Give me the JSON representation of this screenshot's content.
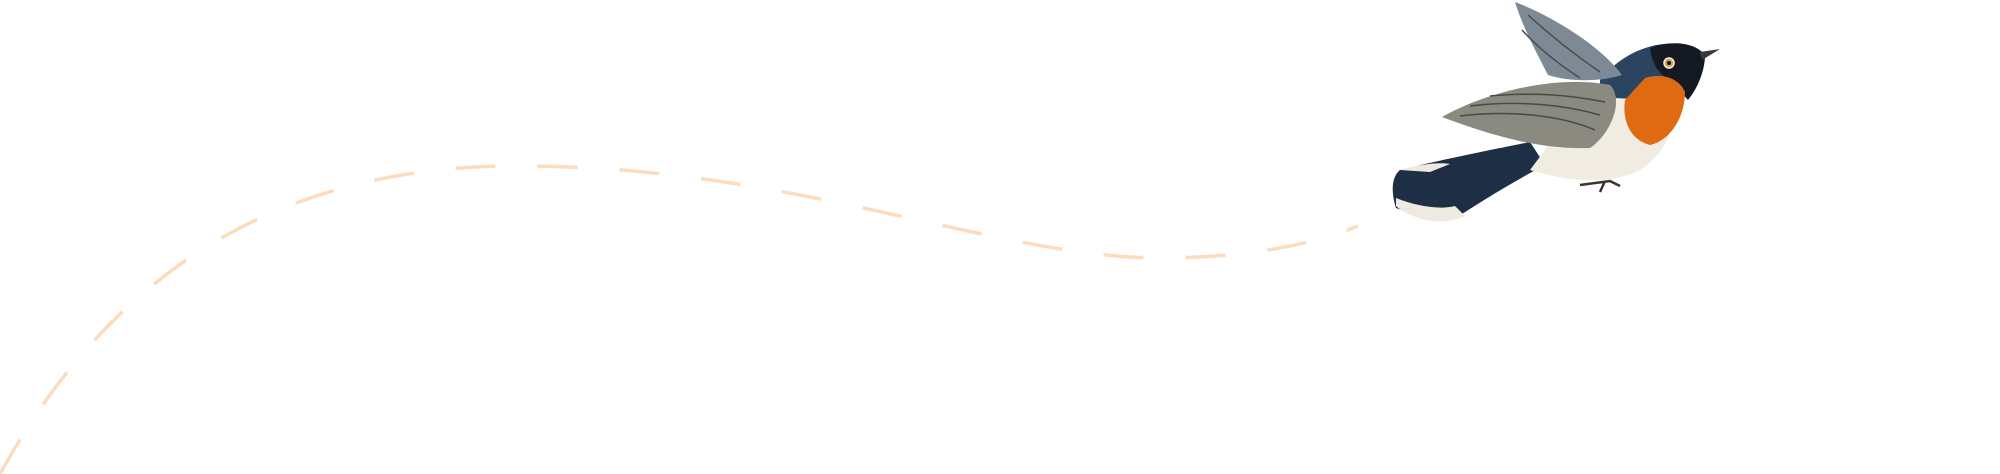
{
  "colors": {
    "background": "#ffffff",
    "flight_path": "#fcdcbd",
    "bird_blue": "#2b4460",
    "bird_orange": "#e06a12",
    "bird_white": "#f1ece2",
    "bird_wing": "#8a8a80"
  },
  "icons": [
    "flight-path-dashes",
    "bird-illustration"
  ]
}
